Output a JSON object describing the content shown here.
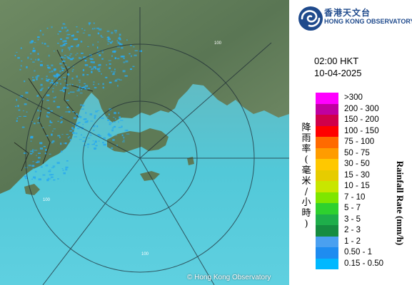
{
  "map": {
    "copyright": "© Hong Kong Observatory",
    "range_ring_labels": [
      "100",
      "100",
      "100"
    ],
    "colors": {
      "sea": "#6fb3bd",
      "land": "#5c7a58",
      "ring": "#2b3a44"
    }
  },
  "header": {
    "logo_icon": "hko-swirl-icon",
    "name_zh": "香港天文台",
    "name_en": "HONG KONG OBSERVATORY",
    "brand_color": "#1f4a8c"
  },
  "timestamp": {
    "time": "02:00 HKT",
    "date": "10-04-2025"
  },
  "legend": {
    "title_zh": "降雨率(毫米/小時)",
    "title_en": "Rainfall Rate (mm/h)",
    "items": [
      {
        "label": ">300",
        "color": "#ff00ff"
      },
      {
        "label": "200 - 300",
        "color": "#c000a0"
      },
      {
        "label": "150 - 200",
        "color": "#d0004a"
      },
      {
        "label": "100 - 150",
        "color": "#ff0000"
      },
      {
        "label": "75 - 100",
        "color": "#ff6a00"
      },
      {
        "label": "50 - 75",
        "color": "#ff9c00"
      },
      {
        "label": "30 - 50",
        "color": "#ffc800"
      },
      {
        "label": "15 - 30",
        "color": "#e6cc00"
      },
      {
        "label": "10 - 15",
        "color": "#c8e600"
      },
      {
        "label": "7 - 10",
        "color": "#7ee600"
      },
      {
        "label": "5 - 7",
        "color": "#2ed12e"
      },
      {
        "label": "3 - 5",
        "color": "#1eae4a"
      },
      {
        "label": "2 - 3",
        "color": "#168c40"
      },
      {
        "label": "1 - 2",
        "color": "#4aa0f0"
      },
      {
        "label": "0.50 - 1",
        "color": "#1e8cf0"
      },
      {
        "label": "0.15 - 0.50",
        "color": "#00b8ff"
      }
    ]
  }
}
